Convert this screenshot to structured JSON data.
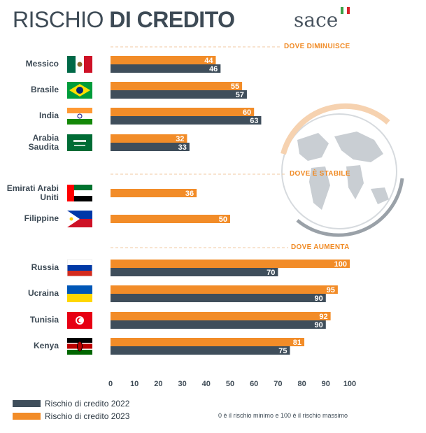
{
  "title": {
    "light": "RISCHIO",
    "bold": "DI CREDITO"
  },
  "logo": {
    "text": "sace",
    "flag_colors": [
      "#3aa046",
      "#ffffff",
      "#d9242b"
    ]
  },
  "colors": {
    "series_2022": "#3f4e5b",
    "series_2023": "#f28c28",
    "section_label": "#f08a24",
    "grid": "#f2c9a0"
  },
  "sections": [
    {
      "label": "DOVE DIMINUISCE"
    },
    {
      "label": "DOVE È STABILE"
    },
    {
      "label": "DOVE AUMENTA"
    }
  ],
  "countries": [
    {
      "name": "Messico",
      "flag": "mexico-flag"
    },
    {
      "name": "Brasile",
      "flag": "brazil-flag"
    },
    {
      "name": "India",
      "flag": "india-flag"
    },
    {
      "name": "Arabia Saudita",
      "flag": "saudi-arabia-flag"
    },
    {
      "name": "Emirati Arabi Uniti",
      "flag": "uae-flag"
    },
    {
      "name": "Filippine",
      "flag": "philippines-flag"
    },
    {
      "name": "Russia",
      "flag": "russia-flag"
    },
    {
      "name": "Ucraina",
      "flag": "ukraine-flag"
    },
    {
      "name": "Tunisia",
      "flag": "tunisia-flag"
    },
    {
      "name": "Kenya",
      "flag": "kenya-flag"
    }
  ],
  "legend": [
    {
      "label": "Rischio di credito 2022"
    },
    {
      "label": "Rischio di credito 2023"
    }
  ],
  "note": "0 è il rischio minimo e 100 è il rischio massimo",
  "chart_data": {
    "type": "bar",
    "orientation": "horizontal",
    "categories": [
      "Messico",
      "Brasile",
      "India",
      "Arabia Saudita",
      "Emirati Arabi Uniti",
      "Filippine",
      "Russia",
      "Ucraina",
      "Tunisia",
      "Kenya"
    ],
    "series": [
      {
        "name": "Rischio di credito 2023",
        "values": [
          44,
          55,
          60,
          32,
          36,
          50,
          100,
          95,
          92,
          81
        ]
      },
      {
        "name": "Rischio di credito 2022",
        "values": [
          46,
          57,
          63,
          33,
          null,
          null,
          70,
          90,
          90,
          75
        ]
      }
    ],
    "x_ticks": [
      0,
      10,
      20,
      30,
      40,
      50,
      60,
      70,
      80,
      90,
      100
    ],
    "xlim": [
      0,
      100
    ],
    "legend_position": "bottom-left"
  }
}
